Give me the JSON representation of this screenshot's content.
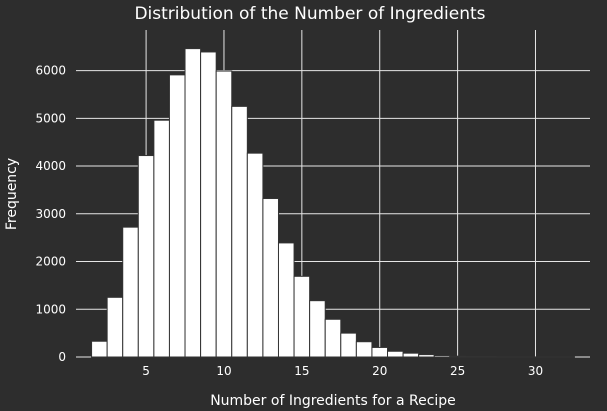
{
  "chart_data": {
    "type": "bar",
    "title": "Distribution of the Number of Ingredients",
    "xlabel": "Number of Ingredients for a Recipe",
    "ylabel": "Frequency",
    "xlim": [
      0.5,
      33.5
    ],
    "ylim": [
      0,
      6850
    ],
    "x_ticks": [
      5,
      10,
      15,
      20,
      25,
      30
    ],
    "y_ticks": [
      0,
      1000,
      2000,
      3000,
      4000,
      5000,
      6000
    ],
    "grid": true,
    "bar_color": "#ffffff",
    "bar_edge_color": "#333333",
    "background_color": "#2d2d2d",
    "grid_color": "#e6e6e6",
    "bins": [
      {
        "x0": 1.5,
        "x1": 2.5,
        "value": 330
      },
      {
        "x0": 2.5,
        "x1": 3.5,
        "value": 1250
      },
      {
        "x0": 3.5,
        "x1": 4.5,
        "value": 2720
      },
      {
        "x0": 4.5,
        "x1": 5.5,
        "value": 4220
      },
      {
        "x0": 5.5,
        "x1": 6.5,
        "value": 4960
      },
      {
        "x0": 6.5,
        "x1": 7.5,
        "value": 5910
      },
      {
        "x0": 7.5,
        "x1": 8.5,
        "value": 6460
      },
      {
        "x0": 8.5,
        "x1": 9.5,
        "value": 6390
      },
      {
        "x0": 9.5,
        "x1": 10.5,
        "value": 5990
      },
      {
        "x0": 10.5,
        "x1": 11.5,
        "value": 5250
      },
      {
        "x0": 11.5,
        "x1": 12.5,
        "value": 4270
      },
      {
        "x0": 12.5,
        "x1": 13.5,
        "value": 3320
      },
      {
        "x0": 13.5,
        "x1": 14.5,
        "value": 2390
      },
      {
        "x0": 14.5,
        "x1": 15.5,
        "value": 1690
      },
      {
        "x0": 15.5,
        "x1": 16.5,
        "value": 1180
      },
      {
        "x0": 16.5,
        "x1": 17.5,
        "value": 790
      },
      {
        "x0": 17.5,
        "x1": 18.5,
        "value": 500
      },
      {
        "x0": 18.5,
        "x1": 19.5,
        "value": 320
      },
      {
        "x0": 19.5,
        "x1": 20.5,
        "value": 200
      },
      {
        "x0": 20.5,
        "x1": 21.5,
        "value": 120
      },
      {
        "x0": 21.5,
        "x1": 22.5,
        "value": 80
      },
      {
        "x0": 22.5,
        "x1": 23.5,
        "value": 50
      },
      {
        "x0": 23.5,
        "x1": 24.5,
        "value": 30
      },
      {
        "x0": 24.5,
        "x1": 25.5,
        "value": 18
      },
      {
        "x0": 25.5,
        "x1": 26.5,
        "value": 10
      },
      {
        "x0": 26.5,
        "x1": 27.5,
        "value": 6
      },
      {
        "x0": 27.5,
        "x1": 28.5,
        "value": 4
      },
      {
        "x0": 28.5,
        "x1": 29.5,
        "value": 3
      },
      {
        "x0": 29.5,
        "x1": 30.5,
        "value": 2
      },
      {
        "x0": 30.5,
        "x1": 31.5,
        "value": 1
      },
      {
        "x0": 31.5,
        "x1": 32.5,
        "value": 1
      }
    ]
  }
}
